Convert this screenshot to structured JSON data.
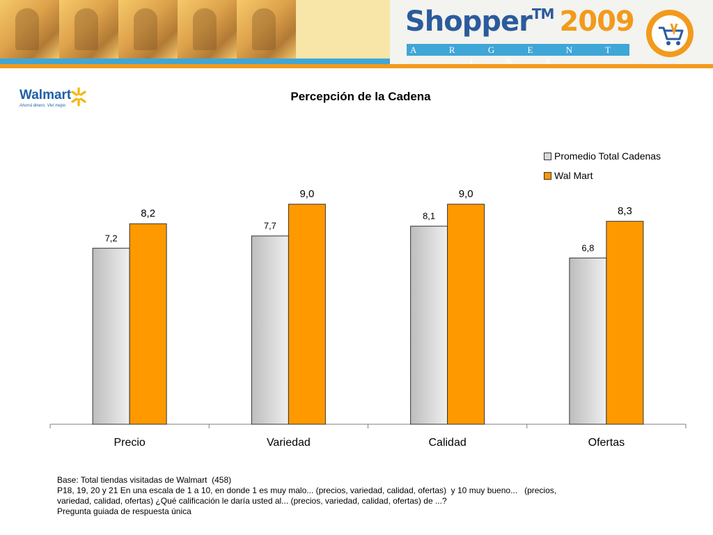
{
  "banner": {
    "brand": "Shopper",
    "trademark": "TM",
    "year": "2009",
    "country": "A R G E N T I N A",
    "colors": {
      "blue": "#2b5b9c",
      "orange": "#f29a1c",
      "light_blue": "#3fa6d8"
    }
  },
  "walmart_logo": {
    "name": "Walmart",
    "tagline": "Ahorrá dinero. Viví mejor."
  },
  "chart_data": {
    "type": "bar",
    "title": "Percepción de la Cadena",
    "categories": [
      "Precio",
      "Variedad",
      "Calidad",
      "Ofertas"
    ],
    "series": [
      {
        "name": "Promedio Total Cadenas",
        "values": [
          7.2,
          7.7,
          8.1,
          6.8
        ],
        "labels": [
          "7,2",
          "7,7",
          "8,1",
          "6,8"
        ],
        "color": "#d9d9d9"
      },
      {
        "name": "Wal Mart",
        "values": [
          8.2,
          9.0,
          9.0,
          8.3
        ],
        "labels": [
          "8,2",
          "9,0",
          "9,0",
          "8,3"
        ],
        "color": "#ff9900"
      }
    ],
    "ylim": [
      0,
      10
    ],
    "xlabel": "",
    "ylabel": "",
    "grid": false,
    "legend": "top-right"
  },
  "footnote": {
    "lines": [
      "Base: Total tiendas visitadas de Walmart  (458)",
      "P18, 19, 20 y 21 En una escala de 1 a 10, en donde 1 es muy malo... (precios, variedad, calidad, ofertas)  y 10 muy bueno...   (precios,",
      "variedad, calidad, ofertas) ¿Qué calificación le daría usted al... (precios, variedad, calidad, ofertas) de ...?",
      "Pregunta guiada de respuesta única"
    ]
  }
}
